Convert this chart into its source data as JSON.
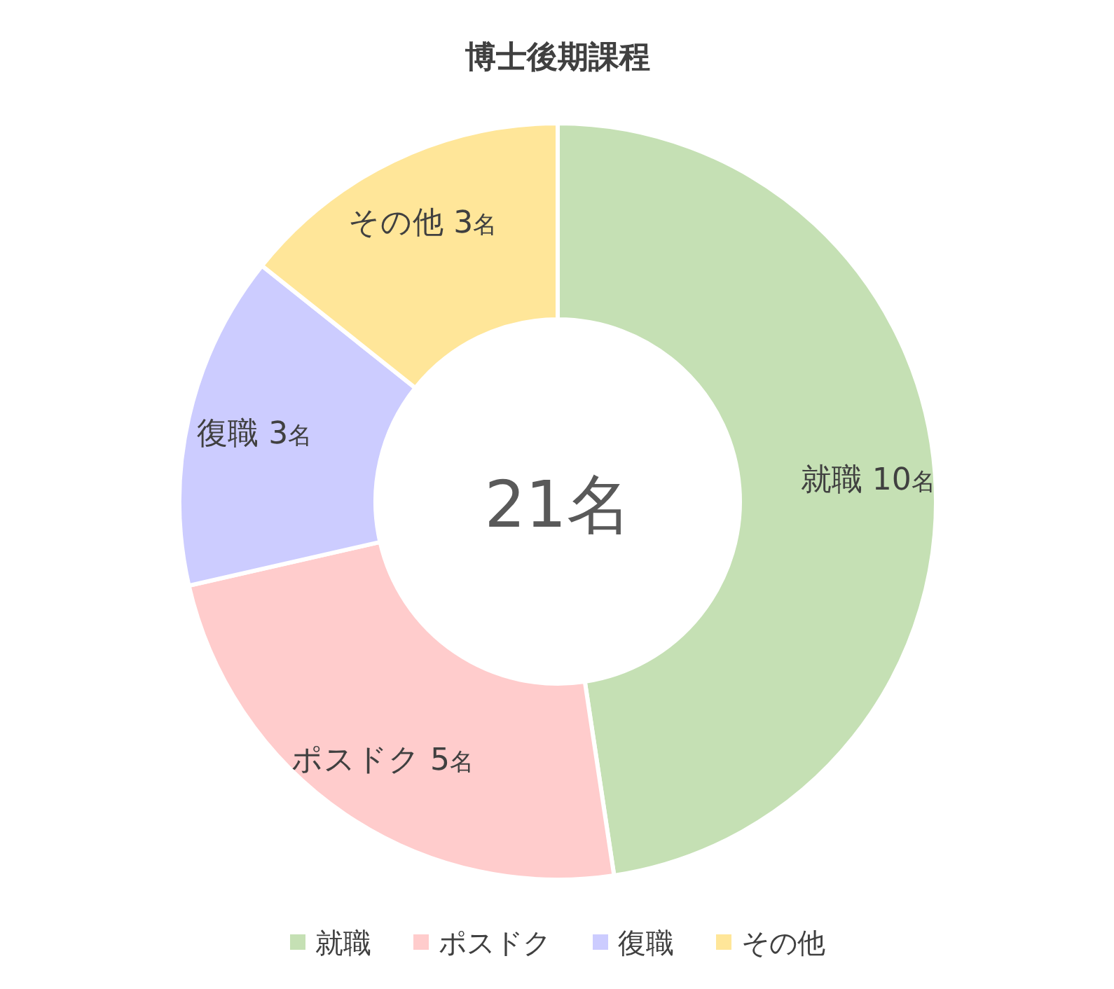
{
  "chart_data": {
    "type": "donut",
    "title": "博士後期課程",
    "categories": [
      "就職",
      "ポスドク",
      "復職",
      "その他"
    ],
    "values": [
      10,
      5,
      3,
      3
    ],
    "value_labels": [
      "10名",
      "5名",
      "3名",
      "3名"
    ],
    "colors": [
      "#c5e0b4",
      "#ffcccc",
      "#ccccff",
      "#ffe699"
    ],
    "annotations": [
      "21名"
    ],
    "legend": "bottom"
  }
}
